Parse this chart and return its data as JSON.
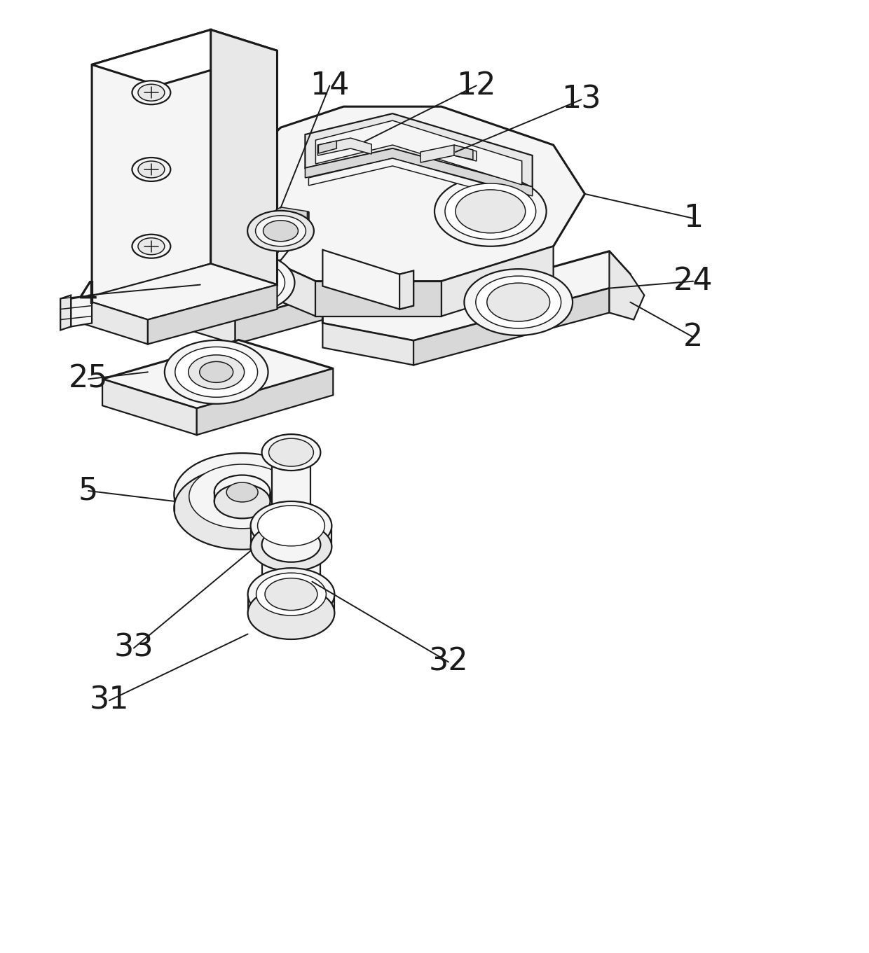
{
  "bg_color": "#ffffff",
  "lc": "#1a1a1a",
  "lw_thick": 2.2,
  "lw_med": 1.6,
  "lw_thin": 1.1,
  "fc_light": "#f5f5f5",
  "fc_mid": "#e8e8e8",
  "fc_dark": "#d8d8d8",
  "fc_white": "#ffffff",
  "figsize": [
    12.4,
    13.61
  ],
  "dpi": 100
}
